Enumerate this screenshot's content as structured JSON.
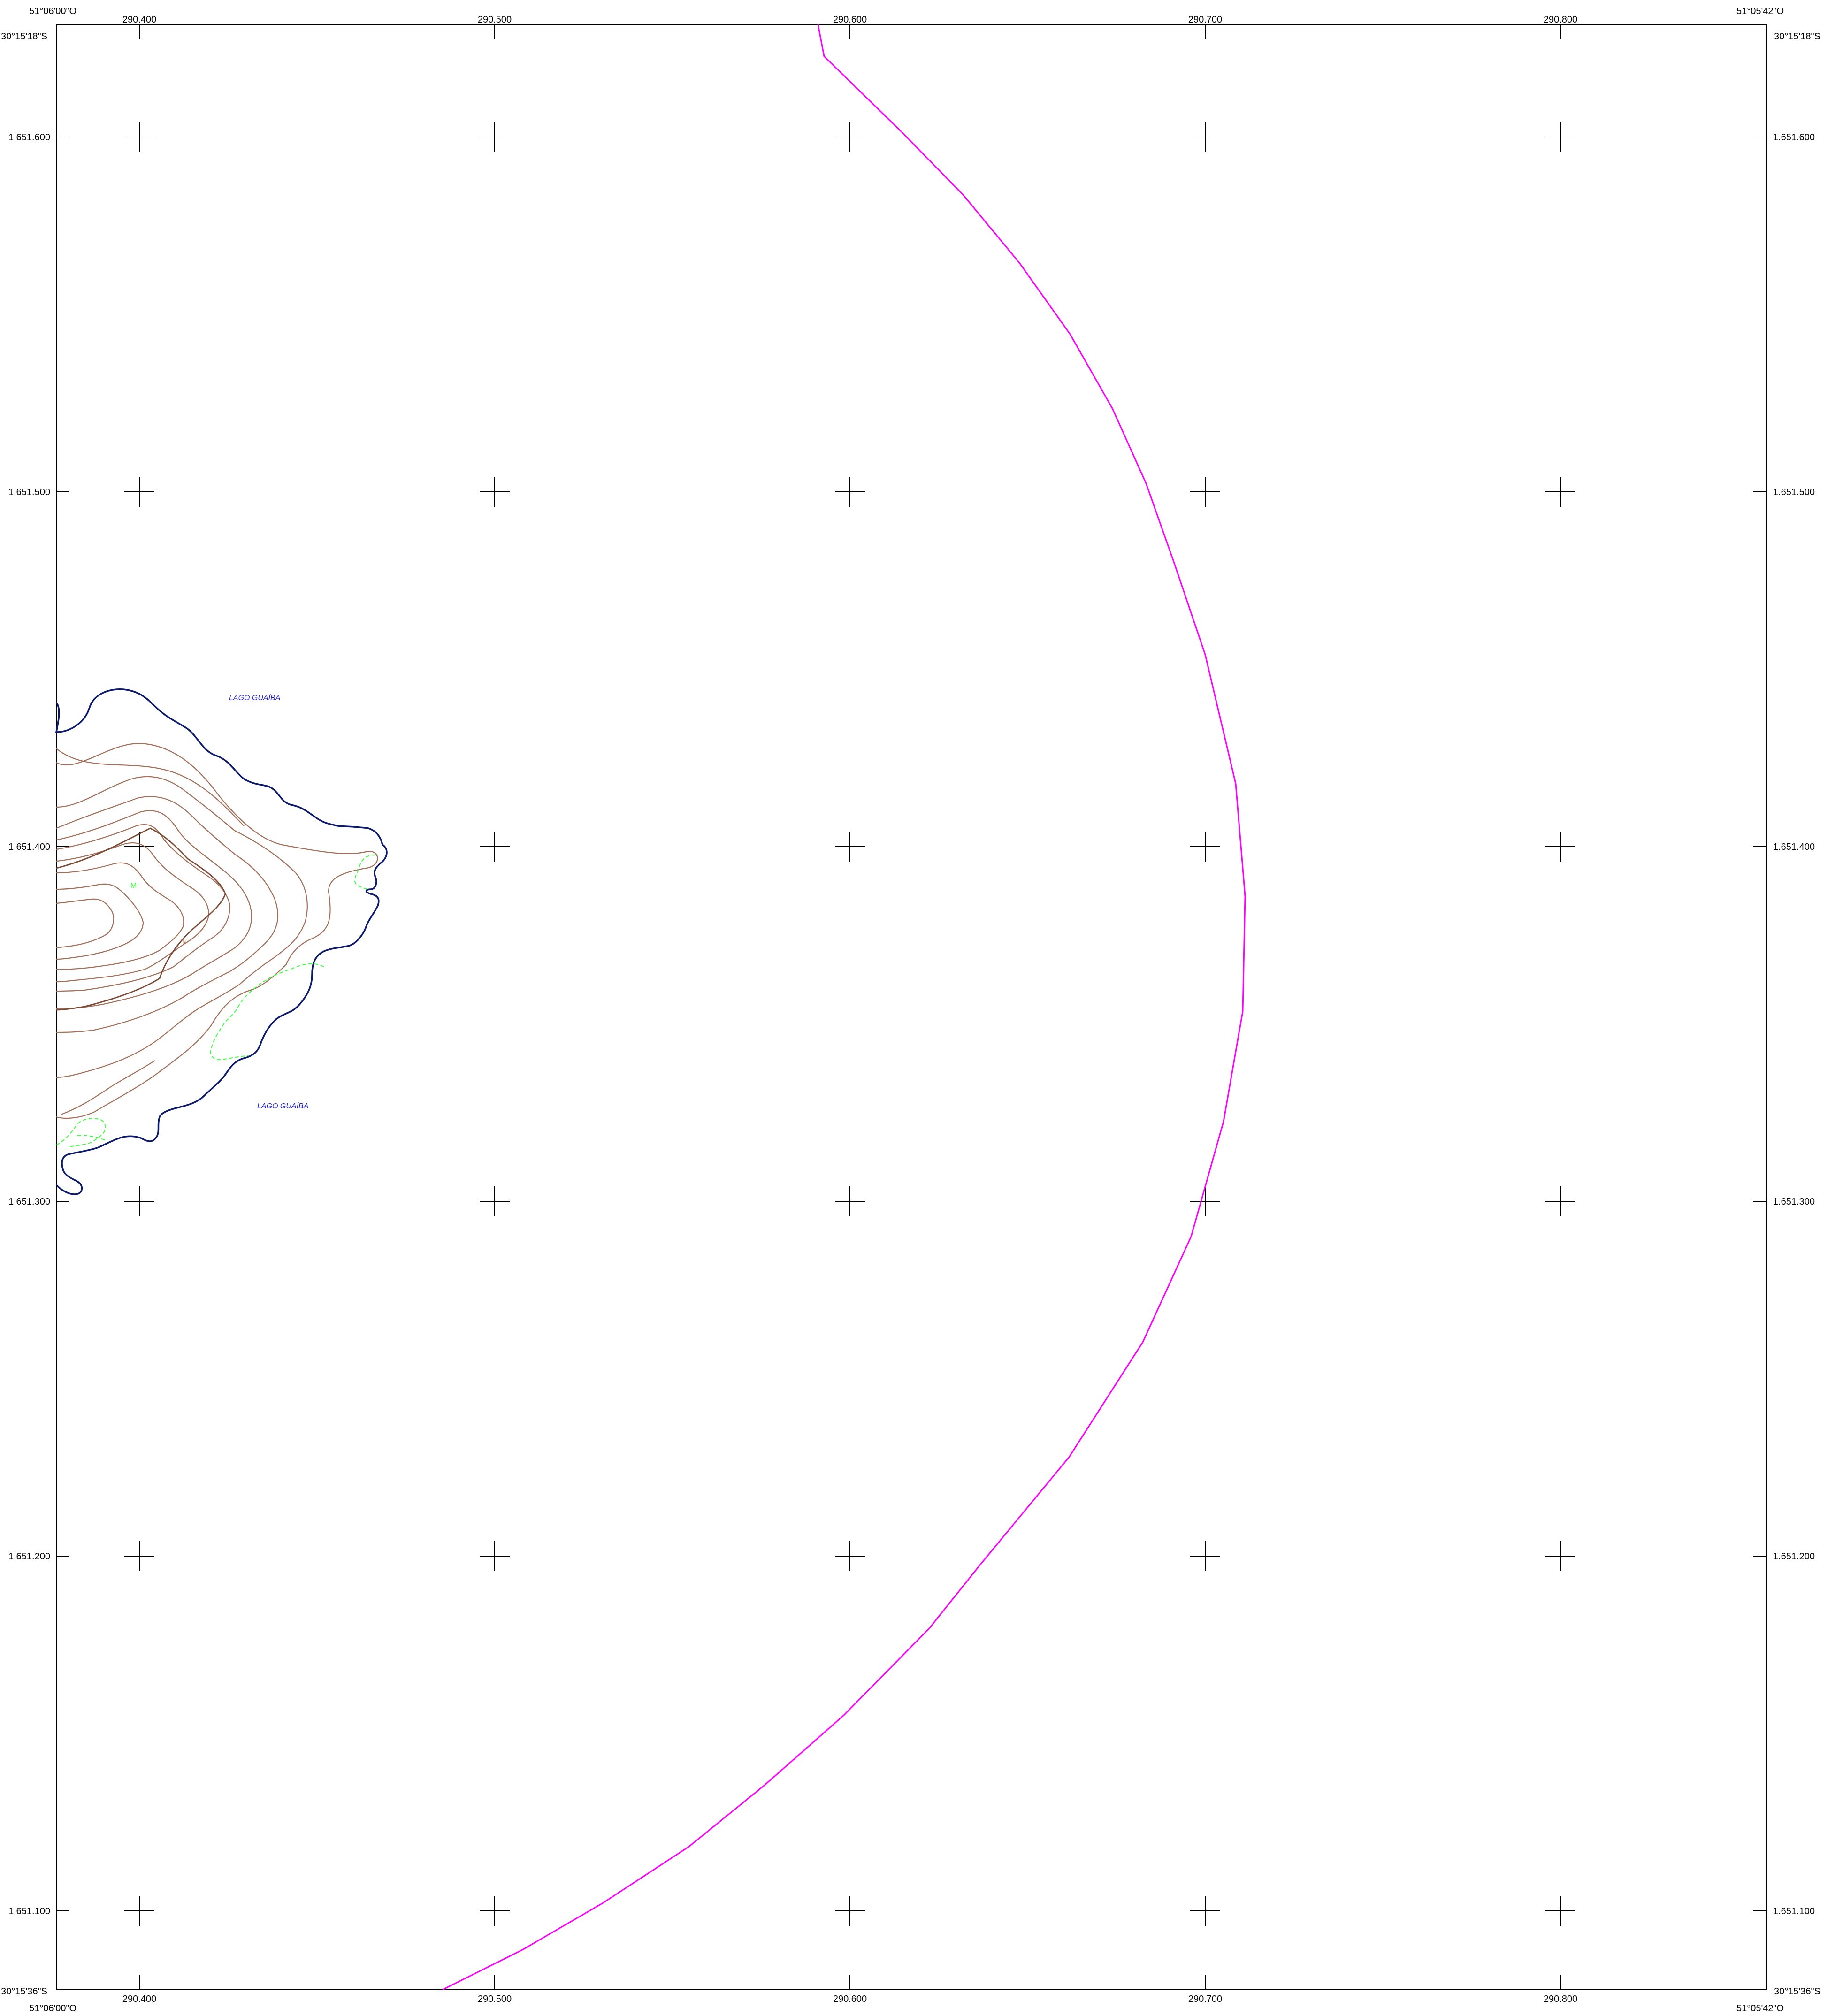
{
  "map": {
    "corners": {
      "top_left_lon": "51°06'00\"O",
      "top_left_lat": "30°15'18\"S",
      "top_right_lon": "51°05'42\"O",
      "top_right_lat": "30°15'18\"S",
      "bottom_left_lon": "51°06'00\"O",
      "bottom_left_lat": "30°15'36\"S",
      "bottom_right_lon": "51°05'42\"O",
      "bottom_right_lat": "30°15'36\"S"
    },
    "easting_labels": [
      "290.400",
      "290.500",
      "290.600",
      "290.700",
      "290.800"
    ],
    "northing_labels": [
      "1.651.600",
      "1.651.500",
      "1.651.400",
      "1.651.300",
      "1.651.200",
      "1.651.100"
    ],
    "water_labels": [
      "LAGO GUAÍBA",
      "LAGO GUAÍBA"
    ],
    "contour_marks": [
      "M",
      "N"
    ],
    "colors": {
      "frame": "#000000",
      "grid_cross": "#000000",
      "boundary_arc": "#ff00ff",
      "shoreline": "#0d1a6b",
      "contour": "#a0705a",
      "contour_index": "#7a4a35",
      "vegetation_dashed": "#3cff3c",
      "water_label": "#1d1dd6"
    }
  }
}
